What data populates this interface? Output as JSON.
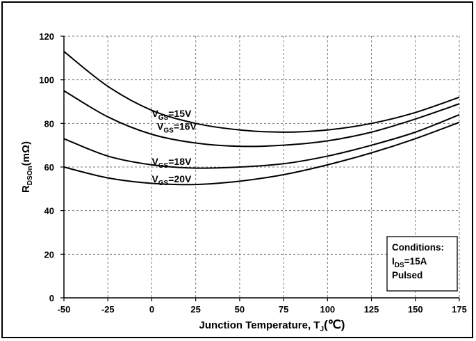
{
  "chart_data": {
    "type": "line",
    "xlabel": "Junction Temperature, T",
    "xlabel_sub": "J",
    "xlabel_unit": "(℃)",
    "ylabel": "R",
    "ylabel_sub": "DSOn",
    "ylabel_unit": "(mΩ)",
    "xlim": [
      -50,
      175
    ],
    "ylim": [
      0,
      120
    ],
    "x_ticks": [
      -50,
      -25,
      0,
      25,
      50,
      75,
      100,
      125,
      150,
      175
    ],
    "y_ticks": [
      0,
      20,
      40,
      60,
      80,
      100,
      120
    ],
    "grid": true,
    "series": [
      {
        "name": "VGS=15V",
        "label_main": "V",
        "label_sub": "GS",
        "label_tail": "=15V",
        "x": [
          -50,
          -25,
          0,
          25,
          50,
          75,
          100,
          125,
          150,
          175
        ],
        "y": [
          113,
          97,
          86,
          80,
          77,
          76,
          77,
          80,
          85,
          92
        ]
      },
      {
        "name": "VGS=16V",
        "label_main": "V",
        "label_sub": "GS",
        "label_tail": "=16V",
        "x": [
          -50,
          -25,
          0,
          25,
          50,
          75,
          100,
          125,
          150,
          175
        ],
        "y": [
          95,
          83,
          75,
          71,
          69.5,
          70,
          72,
          76,
          82,
          89
        ]
      },
      {
        "name": "VGS=18V",
        "label_main": "V",
        "label_sub": "GS",
        "label_tail": "=18V",
        "x": [
          -50,
          -25,
          0,
          25,
          50,
          75,
          100,
          125,
          150,
          175
        ],
        "y": [
          73,
          65,
          61,
          59.5,
          60,
          61.5,
          65,
          70,
          76,
          84
        ]
      },
      {
        "name": "VGS=20V",
        "label_main": "V",
        "label_sub": "GS",
        "label_tail": "=20V",
        "x": [
          -50,
          -25,
          0,
          25,
          50,
          75,
          100,
          125,
          150,
          175
        ],
        "y": [
          60,
          55,
          52.5,
          52,
          53.5,
          56.5,
          61,
          66.5,
          73,
          80.5
        ]
      }
    ],
    "annotation": {
      "title": "Conditions:",
      "line1_main": "I",
      "line1_sub": "DS",
      "line1_tail": "=15A",
      "line2": "Pulsed"
    }
  }
}
